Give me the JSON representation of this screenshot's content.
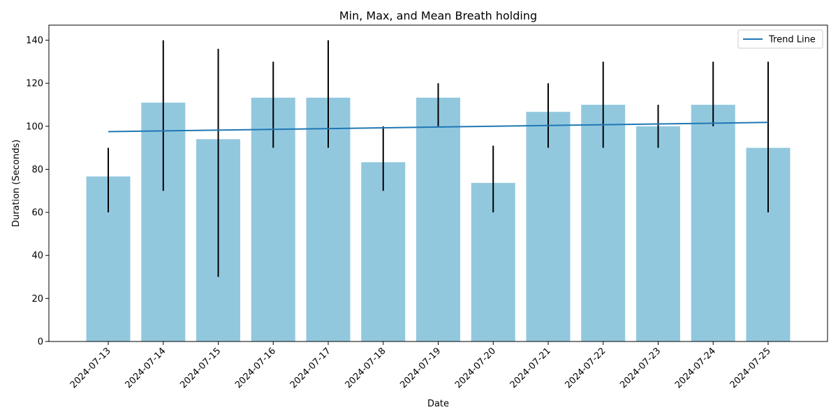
{
  "chart_data": {
    "type": "bar",
    "title": "Min, Max, and Mean Breath holding",
    "xlabel": "Date",
    "ylabel": "Duration (Seconds)",
    "ylim": [
      0,
      147
    ],
    "yticks": [
      0,
      20,
      40,
      60,
      80,
      100,
      120,
      140
    ],
    "grid": false,
    "legend": {
      "placement": "top-right",
      "entries": [
        "Trend Line"
      ]
    },
    "categories": [
      "2024-07-13",
      "2024-07-14",
      "2024-07-15",
      "2024-07-16",
      "2024-07-17",
      "2024-07-18",
      "2024-07-19",
      "2024-07-20",
      "2024-07-21",
      "2024-07-22",
      "2024-07-23",
      "2024-07-24",
      "2024-07-25"
    ],
    "series": [
      {
        "name": "Mean",
        "values": [
          76.7,
          111,
          94,
          113.3,
          113.3,
          83.3,
          113.3,
          73.7,
          106.7,
          110,
          100,
          110,
          90
        ]
      }
    ],
    "min_values": [
      60,
      70,
      30,
      90,
      90,
      70,
      100,
      60,
      90,
      90,
      90,
      100,
      60
    ],
    "max_values": [
      90,
      140,
      136,
      130,
      140,
      100,
      120,
      91,
      120,
      130,
      110,
      130,
      130
    ],
    "trend_line": {
      "name": "Trend Line",
      "start": 97.5,
      "end": 101.8
    },
    "colors": {
      "bar": "#92c8de",
      "trend": "#1f77b4",
      "errorbar": "#000000"
    }
  }
}
